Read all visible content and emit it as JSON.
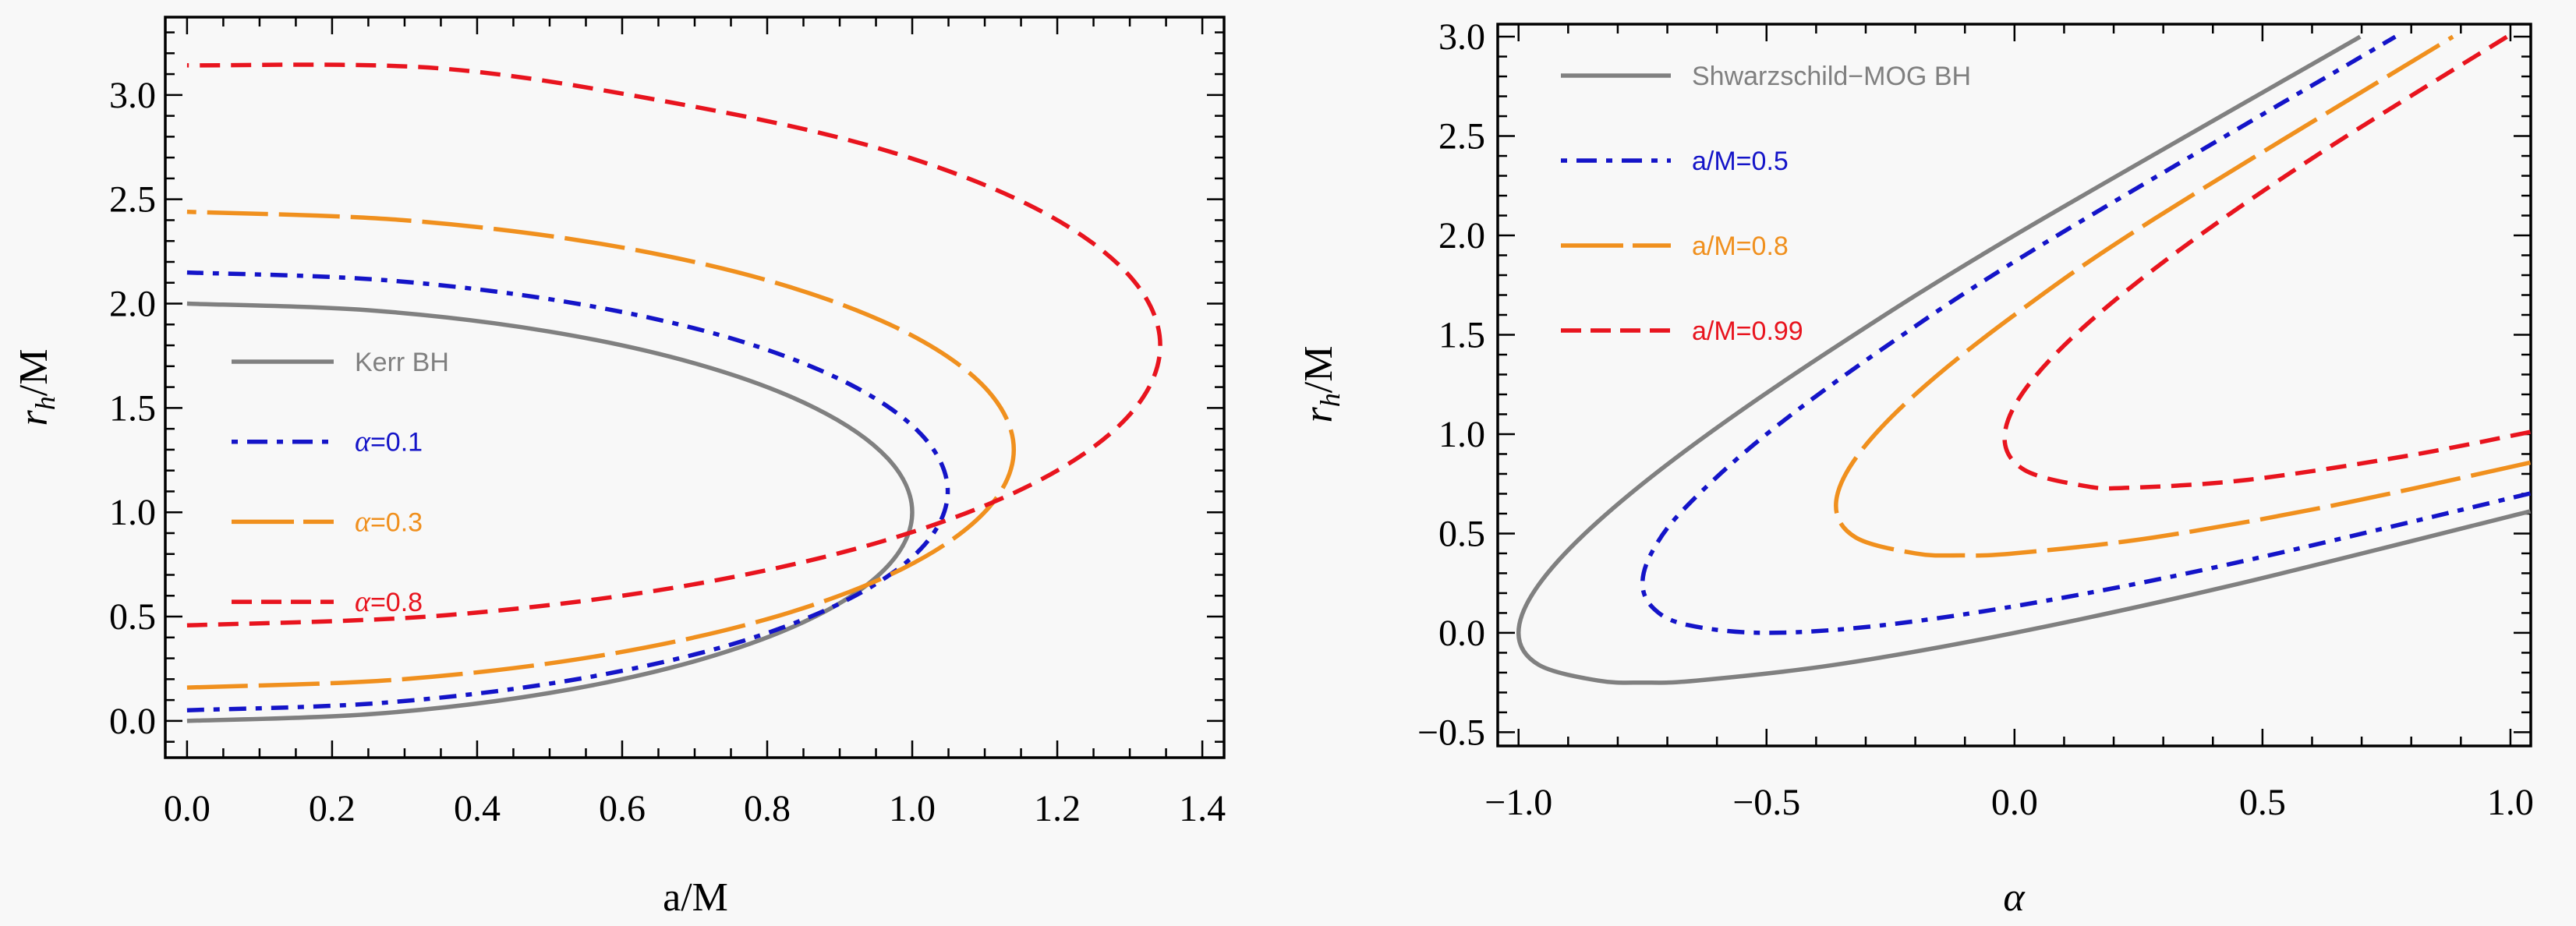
{
  "chart_data": [
    {
      "type": "line",
      "title": "",
      "xlabel": "a/M",
      "ylabel_main": "r",
      "ylabel_sub": "h",
      "ylabel_tail": "/M",
      "xlim": [
        -0.03,
        1.43
      ],
      "ylim": [
        -0.176,
        3.373
      ],
      "x_ticks": [
        0.0,
        0.2,
        0.4,
        0.6,
        0.8,
        1.0,
        1.2,
        1.4
      ],
      "x_tick_labels": [
        "0.0",
        "0.2",
        "0.4",
        "0.6",
        "0.8",
        "1.0",
        "1.2",
        "1.4"
      ],
      "x_minor_step": 0.05,
      "y_ticks": [
        0.0,
        0.5,
        1.0,
        1.5,
        2.0,
        2.5,
        3.0
      ],
      "y_tick_labels": [
        "0.0",
        "0.5",
        "1.0",
        "1.5",
        "2.0",
        "2.5",
        "3.0"
      ],
      "y_minor_step": 0.1,
      "grid": false,
      "legend_position": "left-middle",
      "series": [
        {
          "name": "Kerr BH",
          "color": "#808080",
          "style": "solid",
          "points": [
            [
              0,
              0
            ],
            [
              0.259,
              0.034
            ],
            [
              0.5,
              0.134
            ],
            [
              0.707,
              0.293
            ],
            [
              0.866,
              0.5
            ],
            [
              0.966,
              0.741
            ],
            [
              1.0,
              1.0
            ],
            [
              0.966,
              1.259
            ],
            [
              0.866,
              1.5
            ],
            [
              0.707,
              1.707
            ],
            [
              0.5,
              1.866
            ],
            [
              0.259,
              1.966
            ],
            [
              0,
              2.0
            ]
          ]
        },
        {
          "name": "α=0.1",
          "color": "#1414c8",
          "style": "dot-dash",
          "points": [
            [
              0,
              0.051
            ],
            [
              0.271,
              0.087
            ],
            [
              0.524,
              0.192
            ],
            [
              0.742,
              0.358
            ],
            [
              0.908,
              0.576
            ],
            [
              1.013,
              0.829
            ],
            [
              1.049,
              1.1
            ],
            [
              1.013,
              1.371
            ],
            [
              0.908,
              1.624
            ],
            [
              0.742,
              1.842
            ],
            [
              0.524,
              2.008
            ],
            [
              0.271,
              2.113
            ],
            [
              0,
              2.149
            ]
          ]
        },
        {
          "name": "α=0.3",
          "color": "#f0901e",
          "style": "long-dash",
          "points": [
            [
              0,
              0.16
            ],
            [
              0.295,
              0.199
            ],
            [
              0.57,
              0.313
            ],
            [
              0.806,
              0.494
            ],
            [
              0.987,
              0.73
            ],
            [
              1.101,
              1.005
            ],
            [
              1.14,
              1.3
            ],
            [
              1.101,
              1.595
            ],
            [
              0.987,
              1.87
            ],
            [
              0.806,
              2.106
            ],
            [
              0.57,
              2.287
            ],
            [
              0.295,
              2.401
            ],
            [
              0,
              2.44
            ]
          ]
        },
        {
          "name": "α=0.8",
          "color": "#e8141e",
          "style": "dash",
          "points": [
            [
              0,
              0.458
            ],
            [
              0.347,
              0.504
            ],
            [
              0.671,
              0.638
            ],
            [
              0.949,
              0.851
            ],
            [
              1.162,
              1.129
            ],
            [
              1.296,
              1.453
            ],
            [
              1.342,
              1.8
            ],
            [
              1.296,
              2.147
            ],
            [
              1.162,
              2.471
            ],
            [
              0.949,
              2.749
            ],
            [
              0.671,
              2.962
            ],
            [
              0.347,
              3.128
            ],
            [
              0,
              3.142
            ]
          ]
        }
      ]
    },
    {
      "type": "line",
      "title": "",
      "xlabel": "α",
      "ylabel_main": "r",
      "ylabel_sub": "h",
      "ylabel_tail": "/M",
      "xlim": [
        -1.042,
        1.041
      ],
      "ylim": [
        -0.569,
        3.063
      ],
      "x_ticks": [
        -1.0,
        -0.5,
        0.0,
        0.5,
        1.0
      ],
      "x_tick_labels": [
        "−1.0",
        "−0.5",
        "0.0",
        "0.5",
        "1.0"
      ],
      "x_minor_step": 0.1,
      "y_ticks": [
        -0.5,
        0.0,
        0.5,
        1.0,
        1.5,
        2.0,
        2.5,
        3.0
      ],
      "y_tick_labels": [
        "−0.5",
        "0.0",
        "0.5",
        "1.0",
        "1.5",
        "2.0",
        "2.5",
        "3.0"
      ],
      "y_minor_step": 0.1,
      "grid": false,
      "legend_position": "top-left",
      "series": [
        {
          "name": "Shwarzschild−MOG BH",
          "color": "#808080",
          "style": "solid",
          "points": [
            [
              1.04,
              0.612
            ],
            [
              0.44,
              0.24
            ],
            [
              0,
              0
            ],
            [
              -0.36,
              -0.16
            ],
            [
              -0.64,
              -0.24
            ],
            [
              -0.75,
              -0.25
            ],
            [
              -0.84,
              -0.24
            ],
            [
              -0.96,
              -0.16
            ],
            [
              -1.0,
              0
            ],
            [
              -0.96,
              0.24
            ],
            [
              -0.84,
              0.56
            ],
            [
              -0.64,
              0.96
            ],
            [
              -0.36,
              1.44
            ],
            [
              0,
              2.0
            ],
            [
              0.697,
              3.0
            ]
          ]
        },
        {
          "name": "a/M=0.5",
          "color": "#1414c8",
          "style": "dot-dash",
          "points": [
            [
              1.04,
              0.702
            ],
            [
              0.46,
              0.36
            ],
            [
              0.06,
              0.16
            ],
            [
              -0.26,
              0.04
            ],
            [
              -0.5,
              0
            ],
            [
              -0.66,
              0.04
            ],
            [
              -0.7275,
              0.1225
            ],
            [
              -0.75,
              0.25
            ],
            [
              -0.7275,
              0.4225
            ],
            [
              -0.66,
              0.64
            ],
            [
              -0.5,
              1.0
            ],
            [
              -0.26,
              1.44
            ],
            [
              0.06,
              1.96
            ],
            [
              0.768,
              3.0
            ]
          ]
        },
        {
          "name": "a/M=0.8",
          "color": "#f0901e",
          "style": "long-dash",
          "points": [
            [
              1.04,
              0.857
            ],
            [
              0.64,
              0.64
            ],
            [
              0.28,
              0.48
            ],
            [
              0,
              0.4
            ],
            [
              -0.11,
              0.39
            ],
            [
              -0.2,
              0.4
            ],
            [
              -0.32,
              0.48
            ],
            [
              -0.36,
              0.64
            ],
            [
              -0.32,
              0.88
            ],
            [
              -0.2,
              1.2
            ],
            [
              0,
              1.6
            ],
            [
              0.28,
              2.08
            ],
            [
              0.884,
              3.0
            ]
          ]
        },
        {
          "name": "a/M=0.99",
          "color": "#e8141e",
          "style": "dash",
          "points": [
            [
              1.04,
              1.011
            ],
            [
              0.79,
              0.89
            ],
            [
              0.47,
              0.77
            ],
            [
              0.23,
              0.73
            ],
            [
              0.14,
              0.74
            ],
            [
              0.02,
              0.82
            ],
            [
              -0.02,
              0.98
            ],
            [
              0.02,
              1.22
            ],
            [
              0.14,
              1.54
            ],
            [
              0.34,
              1.94
            ],
            [
              0.62,
              2.42
            ],
            [
              0.993,
              3.0
            ]
          ]
        }
      ]
    }
  ]
}
